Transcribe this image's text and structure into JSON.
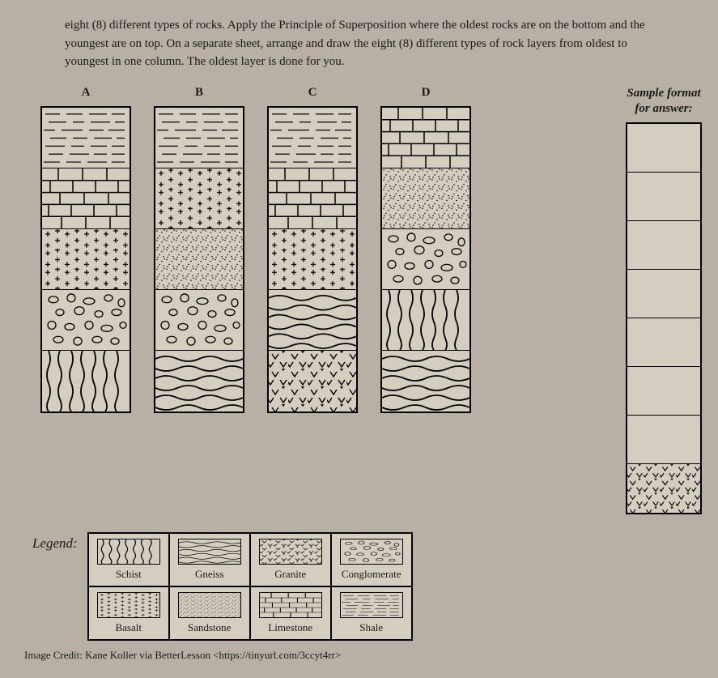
{
  "instructions": {
    "line1": "eight (8) different types of rocks. Apply the Principle of Superposition where the oldest rocks are on the bottom and the youngest are on top.",
    "line2": "On a separate sheet, arrange and draw the eight (8) different types of rock layers from oldest to youngest in one column. The oldest layer is done for you."
  },
  "columns": {
    "A": {
      "label": "A",
      "layers": [
        "shale",
        "limestone",
        "basalt",
        "conglomerate",
        "schist"
      ]
    },
    "B": {
      "label": "B",
      "layers": [
        "shale",
        "basalt",
        "sandstone",
        "conglomerate",
        "gneiss"
      ]
    },
    "C": {
      "label": "C",
      "layers": [
        "shale",
        "limestone",
        "basalt",
        "gneiss",
        "granite"
      ]
    },
    "D": {
      "label": "D",
      "layers": [
        "limestone",
        "sandstone",
        "conglomerate",
        "schist",
        "gneiss"
      ]
    }
  },
  "sample": {
    "title_line1": "Sample format",
    "title_line2": "for answer:",
    "slots": 8,
    "bottom_layer": "granite"
  },
  "legend": {
    "title": "Legend:",
    "rocks": [
      {
        "id": "schist",
        "name": "Schist"
      },
      {
        "id": "gneiss",
        "name": "Gneiss"
      },
      {
        "id": "granite",
        "name": "Granite"
      },
      {
        "id": "conglomerate",
        "name": "Conglomerate"
      },
      {
        "id": "basalt",
        "name": "Basalt"
      },
      {
        "id": "sandstone",
        "name": "Sandstone"
      },
      {
        "id": "limestone",
        "name": "Limestone"
      },
      {
        "id": "shale",
        "name": "Shale"
      }
    ]
  },
  "credit": "Image Credit: Kane Koller via BetterLesson <https://tinyurl.com/3ccyt4rr>",
  "colors": {
    "background": "#b8b0a5",
    "paper": "#d4cdc0",
    "stroke": "#000000"
  }
}
